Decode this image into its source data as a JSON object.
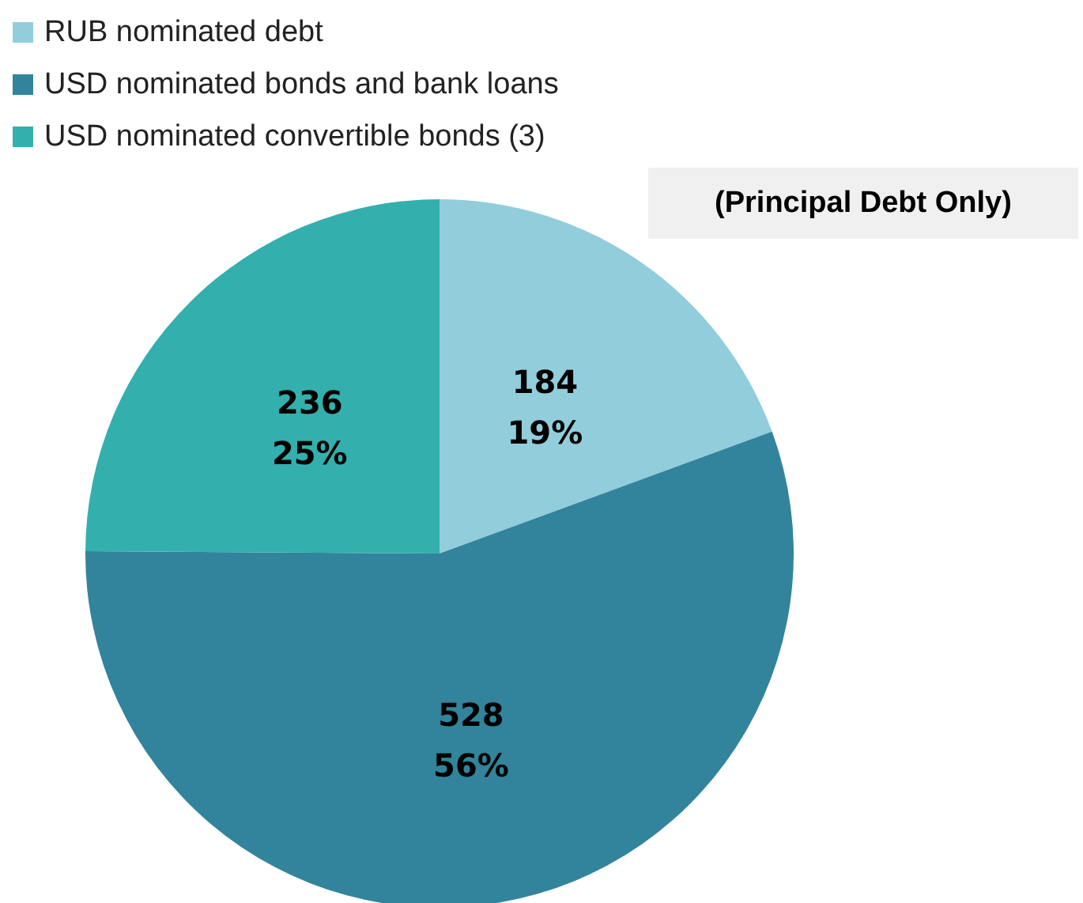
{
  "chart_data": {
    "type": "pie",
    "categories": [
      "RUB nominated debt",
      "USD nominated bonds and bank loans",
      "USD nominated convertible bonds (3)"
    ],
    "values": [
      184,
      528,
      236
    ],
    "colors": [
      "#92cddc",
      "#31849b",
      "#33b0ad"
    ],
    "value_labels": [
      "184\n19%",
      "528\n56%",
      "236\n25%"
    ],
    "annotations": [
      "(Principal Debt Only)"
    ],
    "legend": "top left"
  }
}
